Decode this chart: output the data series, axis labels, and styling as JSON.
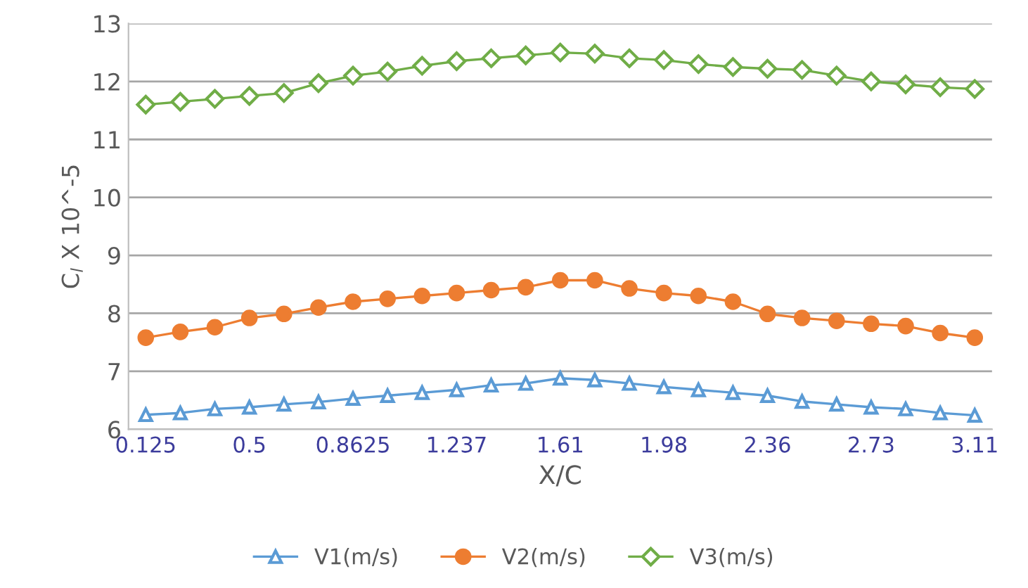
{
  "chart_data": {
    "type": "line",
    "xlabel": "X/C",
    "ylabel": "C$_{l}$ X 10^-5",
    "categories": [
      "0.125",
      null,
      null,
      "0.5",
      null,
      null,
      "0.8625",
      null,
      null,
      "1.237",
      null,
      null,
      "1.61",
      null,
      null,
      "1.98",
      null,
      null,
      "2.36",
      null,
      null,
      "2.73",
      null,
      null,
      "3.11"
    ],
    "series": [
      {
        "name": "V1(m/s)",
        "color": "#5b9bd5",
        "marker": "triangle",
        "values": [
          6.25,
          6.28,
          6.35,
          6.38,
          6.43,
          6.47,
          6.53,
          6.58,
          6.63,
          6.68,
          6.76,
          6.79,
          6.88,
          6.85,
          6.79,
          6.73,
          6.68,
          6.63,
          6.58,
          6.48,
          6.43,
          6.38,
          6.35,
          6.28,
          6.24
        ]
      },
      {
        "name": "V2(m/s)",
        "color": "#ed7d31",
        "marker": "circle",
        "values": [
          7.58,
          7.68,
          7.76,
          7.92,
          7.99,
          8.1,
          8.2,
          8.25,
          8.3,
          8.35,
          8.4,
          8.45,
          8.57,
          8.57,
          8.43,
          8.35,
          8.3,
          8.2,
          7.99,
          7.92,
          7.87,
          7.82,
          7.78,
          7.66,
          7.58
        ]
      },
      {
        "name": "V3(m/s)",
        "color": "#70ad47",
        "marker": "diamond",
        "values": [
          11.6,
          11.65,
          11.7,
          11.75,
          11.8,
          11.97,
          12.1,
          12.17,
          12.27,
          12.35,
          12.4,
          12.45,
          12.5,
          12.48,
          12.4,
          12.37,
          12.3,
          12.25,
          12.22,
          12.2,
          12.1,
          12.0,
          11.95,
          11.9,
          11.87
        ]
      }
    ],
    "ylim": [
      6,
      13
    ],
    "yticks": [
      6,
      7,
      8,
      9,
      10,
      11,
      12,
      13
    ],
    "grid": "y",
    "legend": "bottom"
  }
}
